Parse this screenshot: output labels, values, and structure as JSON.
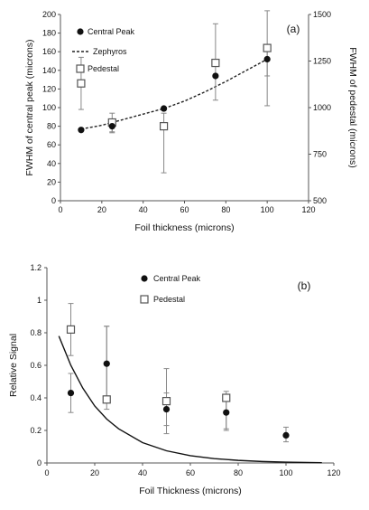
{
  "chart_data": [
    {
      "type": "scatter",
      "panel_label": "(a)",
      "xlabel": "Foil thickness (microns)",
      "ylabel_left": "FWHM of central peak (microns)",
      "ylabel_right": "FWHM of pedestal (microns)",
      "xlim": [
        0,
        120
      ],
      "ylim_left": [
        0,
        200
      ],
      "ylim_right": [
        500,
        1500
      ],
      "xticks": [
        "0",
        "20",
        "40",
        "60",
        "80",
        "100",
        "120"
      ],
      "yticks_left": [
        "0",
        "20",
        "40",
        "60",
        "80",
        "100",
        "120",
        "140",
        "160",
        "180",
        "200"
      ],
      "yticks_right": [
        "500",
        "750",
        "1000",
        "1250",
        "1500"
      ],
      "legend_position": "top-left",
      "series": [
        {
          "name": "Central Peak",
          "marker": "filled-circle",
          "axis": "left",
          "x": [
            10,
            25,
            50,
            75,
            100
          ],
          "y": [
            76,
            80,
            99,
            134,
            152
          ],
          "err_low": [
            0,
            7,
            0,
            0,
            50
          ],
          "err_high": [
            0,
            7,
            0,
            0,
            10
          ]
        },
        {
          "name": "Zephyros",
          "marker": "dashed-line",
          "axis": "left",
          "x": [
            10,
            20,
            30,
            40,
            50,
            60,
            70,
            80,
            90,
            100
          ],
          "y": [
            77,
            81,
            87,
            93,
            99,
            107,
            117,
            128,
            140,
            152
          ]
        },
        {
          "name": "Pedestal",
          "marker": "open-square",
          "axis": "right",
          "x": [
            10,
            25,
            50,
            75,
            100
          ],
          "y": [
            1130,
            920,
            900,
            1240,
            1320
          ],
          "err_low": [
            140,
            50,
            250,
            200,
            150
          ],
          "err_high": [
            140,
            50,
            70,
            210,
            200
          ]
        }
      ]
    },
    {
      "type": "scatter",
      "panel_label": "(b)",
      "xlabel": "Foil Thickness (microns)",
      "ylabel": "Relative Signal",
      "xlim": [
        0,
        120
      ],
      "ylim": [
        0,
        1.2
      ],
      "xticks": [
        "0",
        "20",
        "40",
        "60",
        "80",
        "100",
        "120"
      ],
      "yticks": [
        "0",
        "0.2",
        "0.4",
        "0.6",
        "0.8",
        "1",
        "1.2"
      ],
      "legend_position": "top-center",
      "series": [
        {
          "name": "Central Peak",
          "marker": "filled-circle",
          "x": [
            10,
            25,
            50,
            75,
            100
          ],
          "y": [
            0.43,
            0.61,
            0.33,
            0.31,
            0.17
          ],
          "err_low": [
            0.12,
            0.23,
            0.1,
            0.1,
            0.04
          ],
          "err_high": [
            0.12,
            0.23,
            0.1,
            0.1,
            0.05
          ]
        },
        {
          "name": "Pedestal",
          "marker": "open-square",
          "x": [
            10,
            25,
            50,
            75
          ],
          "y": [
            0.82,
            0.39,
            0.38,
            0.4
          ],
          "err_low": [
            0.16,
            0.06,
            0.2,
            0.2
          ],
          "err_high": [
            0.16,
            0.45,
            0.2,
            0.04
          ]
        },
        {
          "name": "",
          "marker": "solid-line",
          "x": [
            5,
            10,
            15,
            20,
            25,
            30,
            40,
            50,
            60,
            70,
            80,
            90,
            100,
            115
          ],
          "y": [
            0.78,
            0.6,
            0.46,
            0.35,
            0.27,
            0.21,
            0.125,
            0.075,
            0.045,
            0.027,
            0.016,
            0.009,
            0.005,
            0.002
          ]
        }
      ]
    }
  ]
}
